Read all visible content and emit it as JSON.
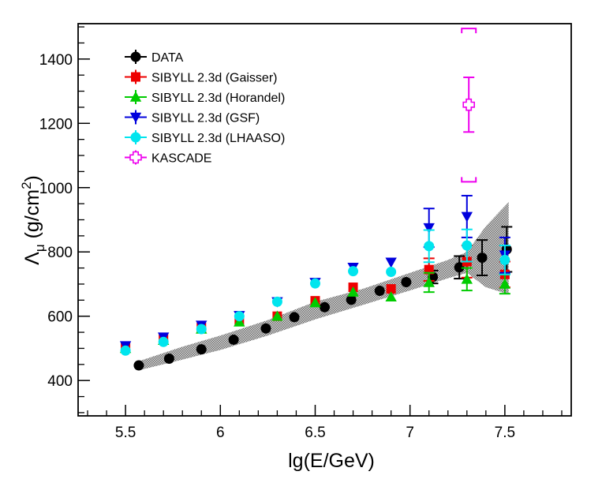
{
  "chart_data": {
    "type": "scatter",
    "title": "",
    "xlabel": "lg(E/GeV)",
    "ylabel_main": "Λ",
    "ylabel_sub": "μ",
    "ylabel_units": " (g/cm",
    "ylabel_sup": "2",
    "ylabel_close": ")",
    "xlim": [
      5.25,
      7.85
    ],
    "ylim": [
      290,
      1510
    ],
    "xticks": [
      {
        "value": 5.5,
        "label": "5.5"
      },
      {
        "value": 6.0,
        "label": "6"
      },
      {
        "value": 6.5,
        "label": "6.5"
      },
      {
        "value": 7.0,
        "label": "7"
      },
      {
        "value": 7.5,
        "label": "7.5"
      }
    ],
    "yticks": [
      {
        "value": 400,
        "label": "400"
      },
      {
        "value": 600,
        "label": "600"
      },
      {
        "value": 800,
        "label": "800"
      },
      {
        "value": 1000,
        "label": "1000"
      },
      {
        "value": 1200,
        "label": "1200"
      },
      {
        "value": 1400,
        "label": "1400"
      }
    ],
    "legend_position": "top-left",
    "band": {
      "name": "systematic band",
      "color": "#a8a8a8",
      "points": [
        {
          "x": 5.57,
          "low": 432,
          "high": 460
        },
        {
          "x": 5.8,
          "low": 465,
          "high": 505
        },
        {
          "x": 6.0,
          "low": 495,
          "high": 540
        },
        {
          "x": 6.25,
          "low": 540,
          "high": 588
        },
        {
          "x": 6.5,
          "low": 590,
          "high": 645
        },
        {
          "x": 6.75,
          "low": 635,
          "high": 685
        },
        {
          "x": 7.0,
          "low": 680,
          "high": 735
        },
        {
          "x": 7.2,
          "low": 718,
          "high": 775
        },
        {
          "x": 7.3,
          "low": 735,
          "high": 800
        },
        {
          "x": 7.4,
          "low": 690,
          "high": 880
        },
        {
          "x": 7.52,
          "low": 668,
          "high": 955
        }
      ]
    },
    "series": [
      {
        "name": "DATA",
        "marker": "circle",
        "color": "#000000",
        "points": [
          {
            "x": 5.57,
            "y": 447
          },
          {
            "x": 5.73,
            "y": 468
          },
          {
            "x": 5.9,
            "y": 497
          },
          {
            "x": 6.07,
            "y": 527
          },
          {
            "x": 6.24,
            "y": 562
          },
          {
            "x": 6.39,
            "y": 597
          },
          {
            "x": 6.55,
            "y": 628
          },
          {
            "x": 6.69,
            "y": 651
          },
          {
            "x": 6.84,
            "y": 679
          },
          {
            "x": 6.98,
            "y": 706
          },
          {
            "x": 7.12,
            "y": 722,
            "err": 20
          },
          {
            "x": 7.26,
            "y": 752,
            "err": 35
          },
          {
            "x": 7.38,
            "y": 782,
            "err": 55
          },
          {
            "x": 7.51,
            "y": 808,
            "err": 70
          }
        ]
      },
      {
        "name": "SIBYLL 2.3d (Gaisser)",
        "marker": "square",
        "color": "#ee0000",
        "points": [
          {
            "x": 5.5,
            "y": 505
          },
          {
            "x": 5.7,
            "y": 530
          },
          {
            "x": 5.9,
            "y": 565
          },
          {
            "x": 6.1,
            "y": 585
          },
          {
            "x": 6.3,
            "y": 600
          },
          {
            "x": 6.5,
            "y": 648
          },
          {
            "x": 6.7,
            "y": 690
          },
          {
            "x": 6.9,
            "y": 685
          },
          {
            "x": 7.1,
            "y": 745,
            "err": 35
          },
          {
            "x": 7.3,
            "y": 770,
            "err": 50
          },
          {
            "x": 7.5,
            "y": 730,
            "err": 40
          }
        ]
      },
      {
        "name": "SIBYLL 2.3d (Horandel)",
        "marker": "triangle-up",
        "color": "#00cc00",
        "points": [
          {
            "x": 5.5,
            "y": 500
          },
          {
            "x": 5.7,
            "y": 525
          },
          {
            "x": 5.9,
            "y": 560
          },
          {
            "x": 6.1,
            "y": 582
          },
          {
            "x": 6.3,
            "y": 600
          },
          {
            "x": 6.5,
            "y": 642
          },
          {
            "x": 6.7,
            "y": 675
          },
          {
            "x": 6.9,
            "y": 660
          },
          {
            "x": 7.1,
            "y": 705,
            "err": 30
          },
          {
            "x": 7.3,
            "y": 715,
            "err": 35
          },
          {
            "x": 7.5,
            "y": 700,
            "err": 30
          }
        ]
      },
      {
        "name": "SIBYLL 2.3d (GSF)",
        "marker": "triangle-down",
        "color": "#0000dd",
        "points": [
          {
            "x": 5.5,
            "y": 508
          },
          {
            "x": 5.7,
            "y": 535
          },
          {
            "x": 5.9,
            "y": 572
          },
          {
            "x": 6.1,
            "y": 602
          },
          {
            "x": 6.3,
            "y": 645
          },
          {
            "x": 6.5,
            "y": 705
          },
          {
            "x": 6.7,
            "y": 752
          },
          {
            "x": 6.9,
            "y": 768
          },
          {
            "x": 7.1,
            "y": 875,
            "err": 60
          },
          {
            "x": 7.3,
            "y": 910,
            "err": 65
          },
          {
            "x": 7.5,
            "y": 790,
            "err": 55
          }
        ]
      },
      {
        "name": "SIBYLL 2.3d (LHAASO)",
        "marker": "circle",
        "color": "#00e5ee",
        "points": [
          {
            "x": 5.5,
            "y": 493
          },
          {
            "x": 5.7,
            "y": 520
          },
          {
            "x": 5.9,
            "y": 560
          },
          {
            "x": 6.1,
            "y": 600
          },
          {
            "x": 6.3,
            "y": 645
          },
          {
            "x": 6.5,
            "y": 702
          },
          {
            "x": 6.7,
            "y": 740
          },
          {
            "x": 6.9,
            "y": 738
          },
          {
            "x": 7.1,
            "y": 818,
            "err": 50
          },
          {
            "x": 7.3,
            "y": 820,
            "err": 50
          },
          {
            "x": 7.5,
            "y": 775,
            "err": 45
          }
        ]
      },
      {
        "name": "KASCADE",
        "marker": "open-cross",
        "color": "#ee00ee",
        "points": [
          {
            "x": 7.31,
            "y": 1258,
            "err": 85,
            "sys_low": 1018,
            "sys_high": 1495
          }
        ]
      }
    ]
  }
}
